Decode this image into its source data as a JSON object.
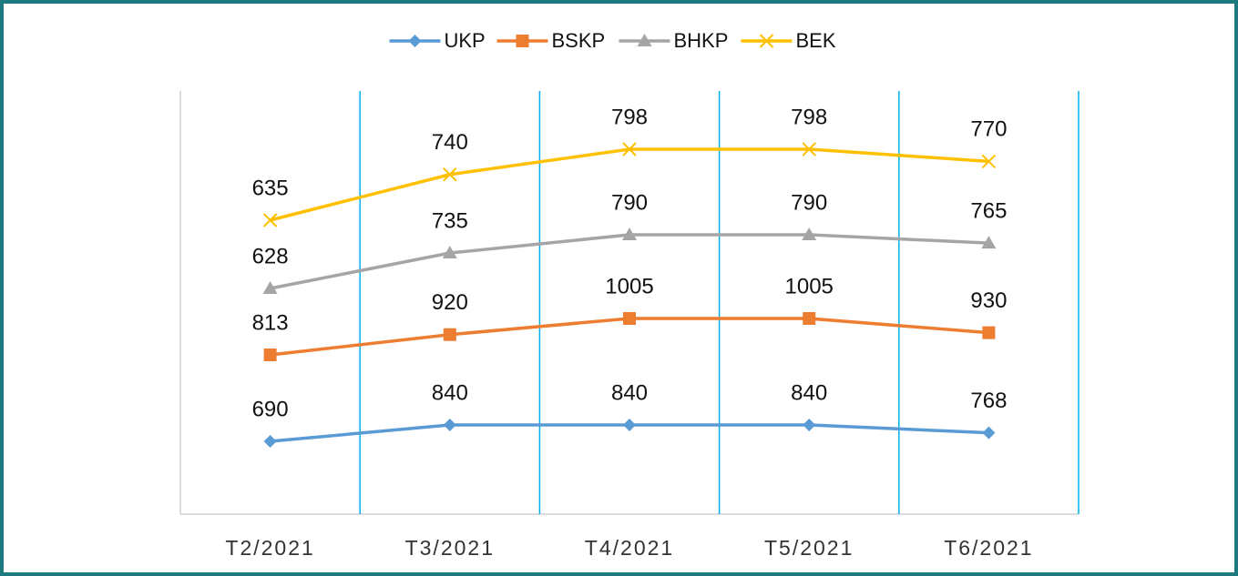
{
  "chart_data": {
    "type": "line",
    "categories": [
      "T2/2021",
      "T3/2021",
      "T4/2021",
      "T5/2021",
      "T6/2021"
    ],
    "series": [
      {
        "name": "UKP",
        "color": "#5b9bd5",
        "marker": "diamond",
        "values": [
          690,
          840,
          840,
          840,
          768
        ]
      },
      {
        "name": "BSKP",
        "color": "#ed7d31",
        "marker": "square",
        "values": [
          813,
          920,
          1005,
          1005,
          930
        ]
      },
      {
        "name": "BHKP",
        "color": "#a5a5a5",
        "marker": "triangle",
        "values": [
          628,
          735,
          790,
          790,
          765
        ]
      },
      {
        "name": "BEK",
        "color": "#ffc000",
        "marker": "x",
        "values": [
          635,
          740,
          798,
          798,
          770
        ]
      }
    ],
    "grid": true
  }
}
